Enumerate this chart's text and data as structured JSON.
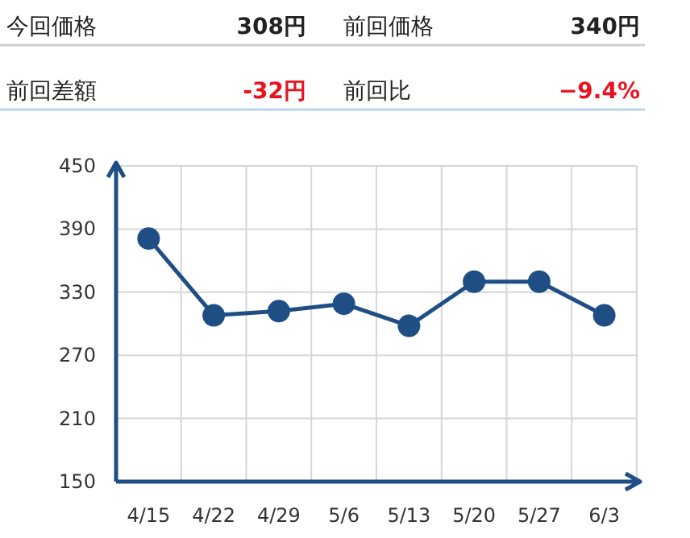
{
  "chart_data": [
    {
      "type": "other",
      "annotations": [
        "今回価格",
        "308円",
        "前回価格",
        "340円",
        "前回差額",
        "-32円",
        "前回比",
        "−9.4%"
      ]
    },
    {
      "type": "line",
      "categories": [
        "4/15",
        "4/22",
        "4/29",
        "5/6",
        "5/13",
        "5/20",
        "5/27",
        "6/3"
      ],
      "series": [
        {
          "color": "#1f4e85",
          "values": [
            381,
            308,
            312,
            319,
            298,
            340,
            340,
            308
          ]
        }
      ],
      "ylim": [
        150,
        450
      ],
      "yticks": [
        150,
        210,
        270,
        330,
        390,
        450
      ],
      "grid": true,
      "marker": "circle",
      "line_style": "solid"
    }
  ]
}
